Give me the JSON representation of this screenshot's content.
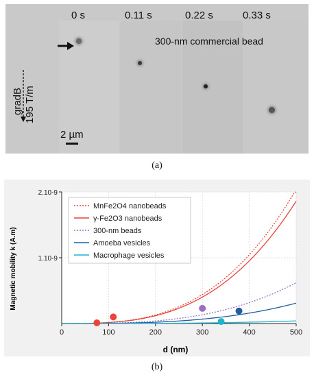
{
  "panel_a": {
    "times": [
      "0 s",
      "0.11 s",
      "0.22 s",
      "0.33 s"
    ],
    "bead_label": "300-nm commercial bead",
    "gradient_label": "gradB",
    "gradient_value": "195 T/m",
    "scale_label": "2 µm",
    "caption": "(a)"
  },
  "panel_b": {
    "caption": "(b)"
  },
  "chart_data": {
    "type": "line",
    "xlabel": "d (nm)",
    "ylabel": "Magnetic mobility k (A.m)",
    "xlim": [
      0,
      500
    ],
    "ylim": [
      0,
      2e-09
    ],
    "x_ticks": [
      "0",
      "100",
      "200",
      "300",
      "400",
      "500"
    ],
    "y_ticks": [
      "1.10-9",
      "2.10-9"
    ],
    "legend_position": "top-left",
    "series": [
      {
        "name": "MnFe2O4 nanobeads",
        "legend_html": "MnFe<sub>2</sub>O<sub>4</sub> nanobeads",
        "color": "#e8443c",
        "style": "dotted",
        "coef": 2.04e-09,
        "point": {
          "x": 75,
          "y": 0.0
        }
      },
      {
        "name": "γ-Fe2O3 nanobeads",
        "legend_html": "γ-Fe<sub>2</sub>O<sub>3</sub> nanobeads",
        "color": "#e8443c",
        "style": "solid",
        "coef": 1.86e-09,
        "point": {
          "x": 110,
          "y": 9e-11
        }
      },
      {
        "name": "300-nm beads",
        "color": "#9b6fc8",
        "style": "dotted",
        "coef": 6.2e-10,
        "point": {
          "x": 300,
          "y": 2.2e-10
        }
      },
      {
        "name": "Amoeba vesicles",
        "color": "#1f5fa0",
        "style": "solid",
        "coef": 3.1e-10,
        "point": {
          "x": 378,
          "y": 1.8e-10
        }
      },
      {
        "name": "Macrophage vesicles",
        "color": "#1fb3cf",
        "style": "solid",
        "coef": 4e-11,
        "point": {
          "x": 340,
          "y": 2e-11
        }
      }
    ]
  }
}
